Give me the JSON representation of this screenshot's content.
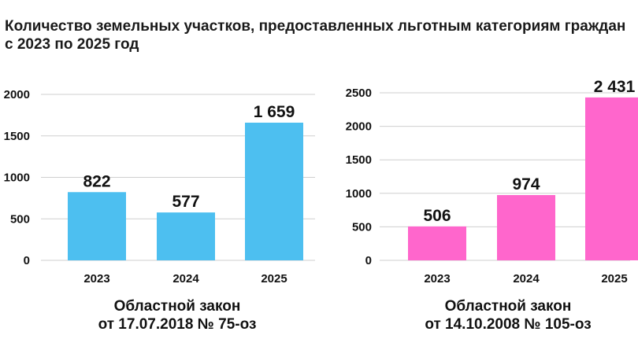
{
  "title": "Количество земельных участков, предоставленных льготным категориям граждан с 2023 по 2025 год",
  "chart_data": [
    {
      "type": "bar",
      "categories": [
        "2023",
        "2024",
        "2025"
      ],
      "values": [
        822,
        577,
        1659
      ],
      "value_labels": [
        "822",
        "577",
        "1 659"
      ],
      "yticks": [
        "0",
        "500",
        "1000",
        "1500",
        "2000"
      ],
      "ylim": [
        0,
        2000
      ],
      "grid": true,
      "color": "#4dbff0",
      "caption_line1": "Областной закон",
      "caption_line2": "от 17.07.2018 № 75-оз"
    },
    {
      "type": "bar",
      "categories": [
        "2023",
        "2024",
        "2025"
      ],
      "values": [
        506,
        974,
        2431
      ],
      "value_labels": [
        "506",
        "974",
        "2 431"
      ],
      "yticks": [
        "0",
        "500",
        "1000",
        "1500",
        "2000",
        "2500"
      ],
      "ylim": [
        0,
        2500
      ],
      "grid": true,
      "color": "#ff66cc",
      "caption_line1": "Областной закон",
      "caption_line2": "от 14.10.2008 № 105-оз"
    }
  ]
}
